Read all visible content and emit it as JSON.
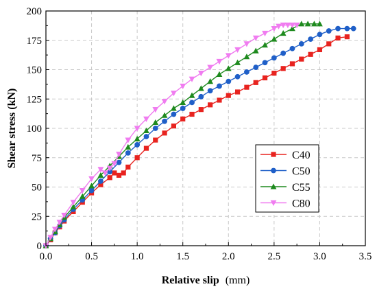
{
  "chart_data": {
    "type": "line",
    "title": "",
    "xlabel": "Relative slip",
    "xlabel_unit": "(mm)",
    "ylabel": "Shear stress (kN)",
    "xlim": [
      0,
      3.5
    ],
    "ylim": [
      0,
      200
    ],
    "xticks": [
      "0.0",
      "0.5",
      "1.0",
      "1.5",
      "2.0",
      "2.5",
      "3.0",
      "3.5"
    ],
    "yticks": [
      "0",
      "25",
      "50",
      "75",
      "100",
      "125",
      "150",
      "175",
      "200"
    ],
    "grid": true,
    "legend_position": "bottom-right",
    "series": [
      {
        "name": "C40",
        "color": "#e8231f",
        "marker": "square",
        "x": [
          0.0,
          0.05,
          0.1,
          0.15,
          0.2,
          0.3,
          0.4,
          0.5,
          0.6,
          0.7,
          0.75,
          0.8,
          0.85,
          0.9,
          1.0,
          1.1,
          1.2,
          1.3,
          1.4,
          1.5,
          1.6,
          1.7,
          1.8,
          1.9,
          2.0,
          2.1,
          2.2,
          2.3,
          2.4,
          2.5,
          2.6,
          2.7,
          2.8,
          2.9,
          3.0,
          3.1,
          3.2,
          3.3
        ],
        "y": [
          0,
          5,
          11,
          16,
          21,
          29,
          37,
          45,
          52,
          58,
          62,
          60,
          62,
          67,
          75,
          83,
          90,
          96,
          102,
          108,
          112,
          116,
          120,
          124,
          128,
          131,
          135,
          139,
          143,
          147,
          151,
          155,
          159,
          163,
          167,
          172,
          177,
          178
        ]
      },
      {
        "name": "C50",
        "color": "#1f5fc8",
        "marker": "circle",
        "x": [
          0.0,
          0.05,
          0.1,
          0.15,
          0.2,
          0.3,
          0.4,
          0.5,
          0.6,
          0.7,
          0.8,
          0.9,
          1.0,
          1.1,
          1.2,
          1.3,
          1.4,
          1.5,
          1.6,
          1.7,
          1.8,
          1.9,
          2.0,
          2.1,
          2.2,
          2.3,
          2.4,
          2.5,
          2.6,
          2.7,
          2.8,
          2.9,
          3.0,
          3.1,
          3.2,
          3.3,
          3.37
        ],
        "y": [
          0,
          6,
          11,
          17,
          22,
          31,
          39,
          47,
          55,
          63,
          71,
          79,
          86,
          93,
          100,
          106,
          112,
          117,
          122,
          127,
          132,
          136,
          140,
          144,
          148,
          152,
          156,
          160,
          164,
          168,
          172,
          176,
          180,
          183,
          185,
          185,
          185
        ]
      },
      {
        "name": "C55",
        "color": "#1e8a1e",
        "marker": "triangle-up",
        "x": [
          0.0,
          0.05,
          0.1,
          0.15,
          0.2,
          0.3,
          0.4,
          0.5,
          0.6,
          0.7,
          0.8,
          0.9,
          1.0,
          1.1,
          1.2,
          1.3,
          1.4,
          1.5,
          1.6,
          1.7,
          1.8,
          1.9,
          2.0,
          2.1,
          2.2,
          2.3,
          2.4,
          2.5,
          2.6,
          2.7,
          2.8,
          2.87,
          2.94,
          3.0
        ],
        "y": [
          0,
          6,
          12,
          18,
          24,
          33,
          42,
          51,
          60,
          68,
          76,
          84,
          91,
          98,
          105,
          111,
          117,
          122,
          128,
          134,
          140,
          146,
          151,
          156,
          161,
          166,
          171,
          176,
          181,
          185,
          189,
          189,
          189,
          189
        ]
      },
      {
        "name": "C80",
        "color": "#f07cf0",
        "marker": "triangle-down",
        "x": [
          0.0,
          0.05,
          0.1,
          0.15,
          0.2,
          0.3,
          0.4,
          0.5,
          0.6,
          0.65,
          0.7,
          0.75,
          0.8,
          0.9,
          1.0,
          1.1,
          1.2,
          1.3,
          1.4,
          1.5,
          1.6,
          1.7,
          1.8,
          1.9,
          2.0,
          2.1,
          2.2,
          2.3,
          2.4,
          2.5,
          2.55,
          2.6,
          2.65,
          2.7,
          2.75
        ],
        "y": [
          0,
          7,
          14,
          20,
          26,
          37,
          47,
          57,
          65,
          62,
          66,
          70,
          78,
          90,
          100,
          108,
          116,
          123,
          130,
          136,
          142,
          147,
          152,
          157,
          162,
          167,
          172,
          177,
          181,
          185,
          187,
          188,
          188,
          188,
          188
        ]
      }
    ]
  }
}
